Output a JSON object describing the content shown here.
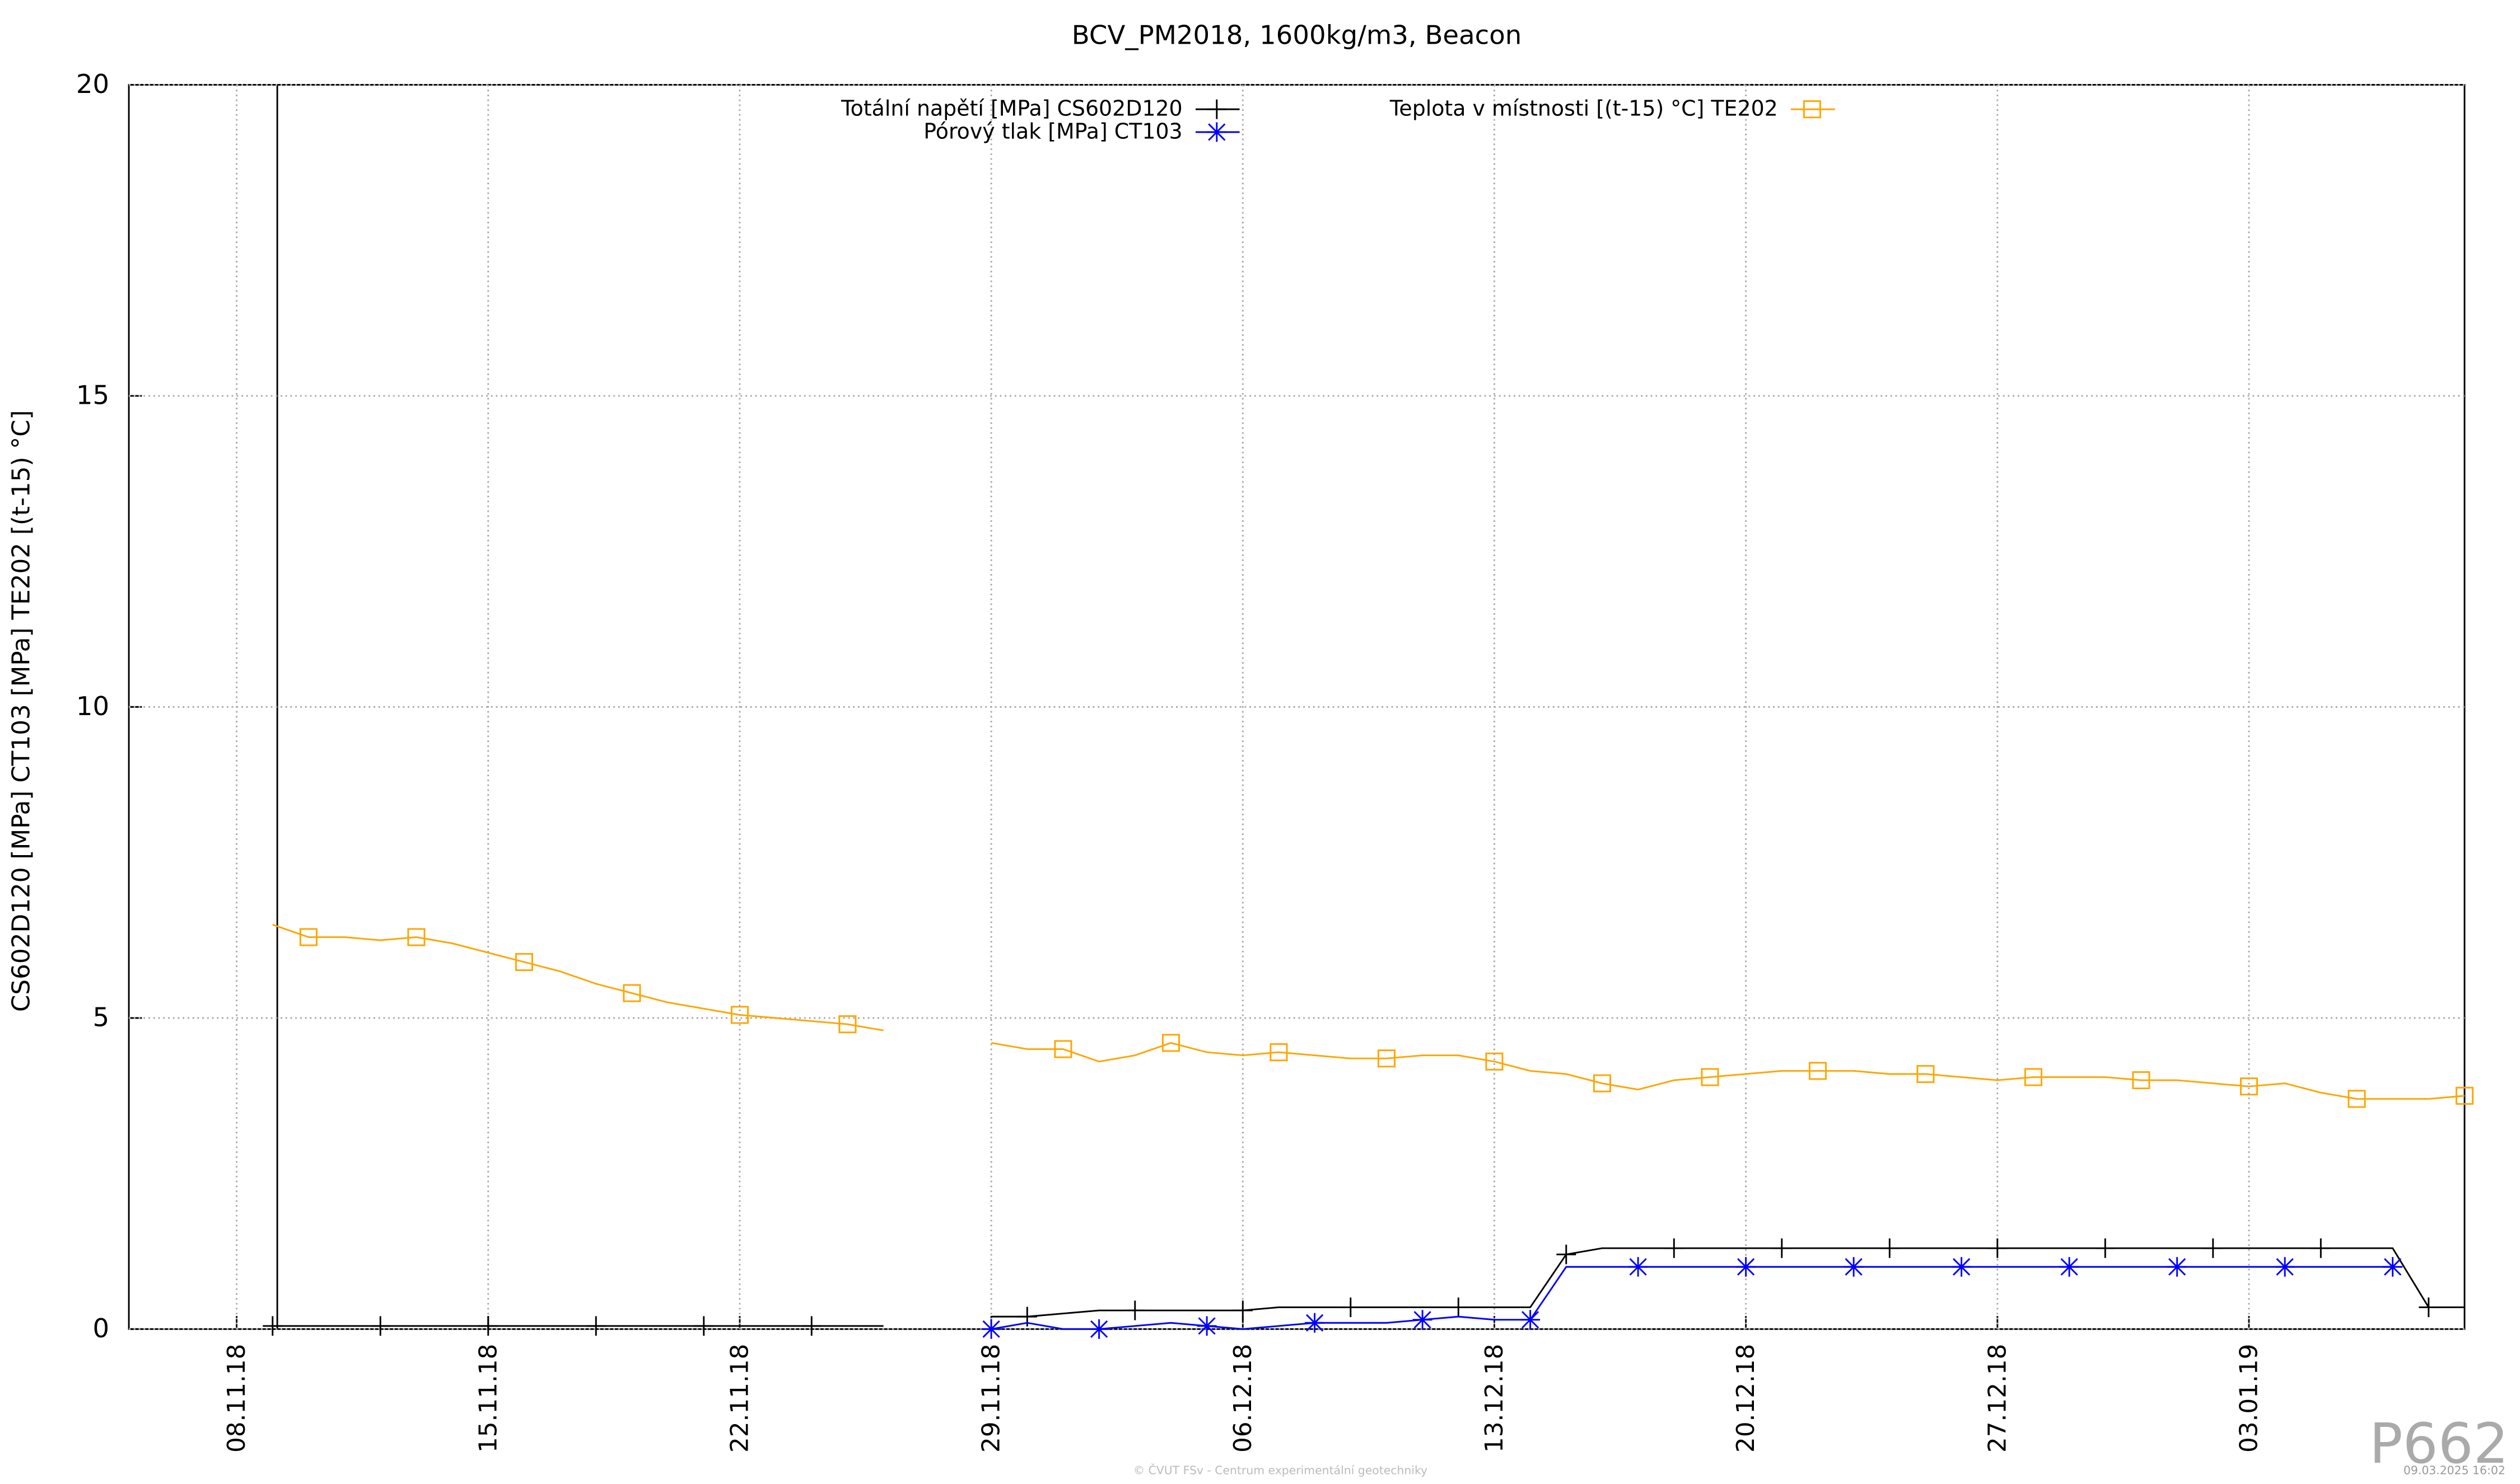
{
  "chart_data": {
    "type": "line",
    "title": "BCV_PM2018, 1600kg/m3, Beacon",
    "ylabel": "CS602D120 [MPa] CT103 [MPa] TE202 [(t-15) °C]",
    "watermark": "P662",
    "footer": "© ČVUT FSv - Centrum experimentální geotechniky",
    "timestamp": "09.03.2025 16:02",
    "xlim": [
      "05.11.18",
      "09.01.19"
    ],
    "xticks": [
      "08.11.18",
      "15.11.18",
      "22.11.18",
      "29.11.18",
      "06.12.18",
      "13.12.18",
      "20.12.18",
      "27.12.18",
      "03.01.19"
    ],
    "ylim": [
      0,
      20
    ],
    "yticks": [
      0,
      5,
      10,
      15,
      20
    ],
    "grid": true,
    "x": [
      "09.11.18",
      "10.11.18",
      "11.11.18",
      "12.11.18",
      "13.11.18",
      "14.11.18",
      "15.11.18",
      "16.11.18",
      "17.11.18",
      "18.11.18",
      "19.11.18",
      "20.11.18",
      "21.11.18",
      "22.11.18",
      "23.11.18",
      "24.11.18",
      "25.11.18",
      "26.11.18",
      "27.11.18",
      "28.11.18",
      "29.11.18",
      "30.11.18",
      "01.12.18",
      "02.12.18",
      "03.12.18",
      "04.12.18",
      "05.12.18",
      "06.12.18",
      "07.12.18",
      "08.12.18",
      "09.12.18",
      "10.12.18",
      "11.12.18",
      "12.12.18",
      "13.12.18",
      "14.12.18",
      "15.12.18",
      "16.12.18",
      "17.12.18",
      "18.12.18",
      "19.12.18",
      "20.12.18",
      "21.12.18",
      "22.12.18",
      "23.12.18",
      "24.12.18",
      "25.12.18",
      "26.12.18",
      "27.12.18",
      "28.12.18",
      "29.12.18",
      "30.12.18",
      "31.12.18",
      "01.01.19",
      "02.01.19",
      "03.01.19",
      "04.01.19",
      "05.01.19",
      "06.01.19",
      "07.01.19",
      "08.01.19",
      "09.01.19"
    ],
    "series": [
      {
        "name": "Totální napětí [MPa] CS602D120",
        "color": "#000000",
        "marker": "plus",
        "values": [
          0.05,
          0.05,
          0.05,
          0.05,
          0.05,
          0.05,
          0.05,
          0.05,
          0.05,
          0.05,
          0.05,
          0.05,
          0.05,
          0.05,
          0.05,
          0.05,
          0.05,
          0.05,
          null,
          null,
          0.2,
          0.2,
          0.25,
          0.3,
          0.3,
          0.3,
          0.3,
          0.3,
          0.35,
          0.35,
          0.35,
          0.35,
          0.35,
          0.35,
          0.35,
          0.35,
          1.2,
          1.3,
          1.3,
          1.3,
          1.3,
          1.3,
          1.3,
          1.3,
          1.3,
          1.3,
          1.3,
          1.3,
          1.3,
          1.3,
          1.3,
          1.3,
          1.3,
          1.3,
          1.3,
          1.3,
          1.3,
          1.3,
          1.3,
          1.3,
          0.35,
          0.35
        ]
      },
      {
        "name": "Pórový tlak [MPa] CT103",
        "color": "#0000ff",
        "marker": "star",
        "values": [
          null,
          null,
          null,
          null,
          null,
          null,
          null,
          null,
          null,
          null,
          null,
          null,
          null,
          null,
          null,
          null,
          null,
          null,
          null,
          null,
          0,
          0.1,
          0,
          0,
          0.05,
          0.1,
          0.05,
          0,
          0.05,
          0.1,
          0.1,
          0.1,
          0.15,
          0.2,
          0.15,
          0.15,
          1.0,
          1.0,
          1.0,
          1.0,
          1.0,
          1.0,
          1.0,
          1.0,
          1.0,
          1.0,
          1.0,
          1.0,
          1.0,
          1.0,
          1.0,
          1.0,
          1.0,
          1.0,
          1.0,
          1.0,
          1.0,
          1.0,
          1.0,
          1.0,
          null,
          null
        ]
      },
      {
        "name": "Teplota v místnosti [(t-15) °C] TE202",
        "color": "#ffa500",
        "marker": "square",
        "values": [
          6.5,
          6.3,
          6.3,
          6.25,
          6.3,
          6.2,
          6.05,
          5.9,
          5.75,
          5.55,
          5.4,
          5.25,
          5.15,
          5.05,
          5.0,
          4.95,
          4.9,
          4.8,
          null,
          null,
          4.6,
          4.5,
          4.5,
          4.3,
          4.4,
          4.6,
          4.45,
          4.4,
          4.45,
          4.4,
          4.35,
          4.35,
          4.4,
          4.4,
          4.3,
          4.15,
          4.1,
          3.95,
          3.85,
          4.0,
          4.05,
          4.1,
          4.15,
          4.15,
          4.15,
          4.1,
          4.1,
          4.05,
          4.0,
          4.05,
          4.05,
          4.05,
          4.0,
          4.0,
          3.95,
          3.9,
          3.95,
          3.8,
          3.7,
          3.7,
          3.7,
          3.75
        ]
      }
    ]
  }
}
